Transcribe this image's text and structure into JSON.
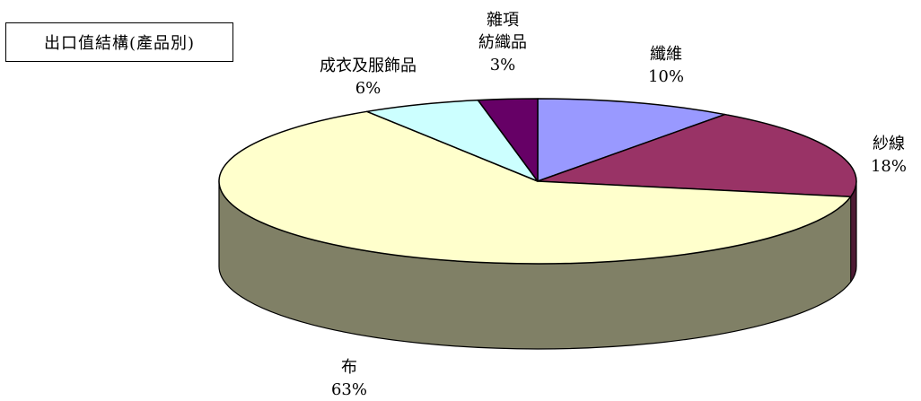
{
  "chart_data": {
    "type": "pie",
    "title": "出口值結構(產品別)",
    "slices": [
      {
        "name": "纖維",
        "value": 10,
        "label": "10%",
        "color": "#9999ff",
        "lines": [
          "纖維"
        ]
      },
      {
        "name": "紗線",
        "value": 18,
        "label": "18%",
        "color": "#993366",
        "lines": [
          "紗線"
        ]
      },
      {
        "name": "布",
        "value": 63,
        "label": "63%",
        "color": "#ffffcc",
        "lines": [
          "布"
        ]
      },
      {
        "name": "成衣及服飾品",
        "value": 6,
        "label": "6%",
        "color": "#ccffff",
        "lines": [
          "成衣及服飾品"
        ]
      },
      {
        "name": "雜項紡織品",
        "value": 3,
        "label": "3%",
        "color": "#660066",
        "lines": [
          "雜項",
          "紡織品"
        ]
      }
    ],
    "side_color": "#808066",
    "three_d": true,
    "legend": "none"
  }
}
